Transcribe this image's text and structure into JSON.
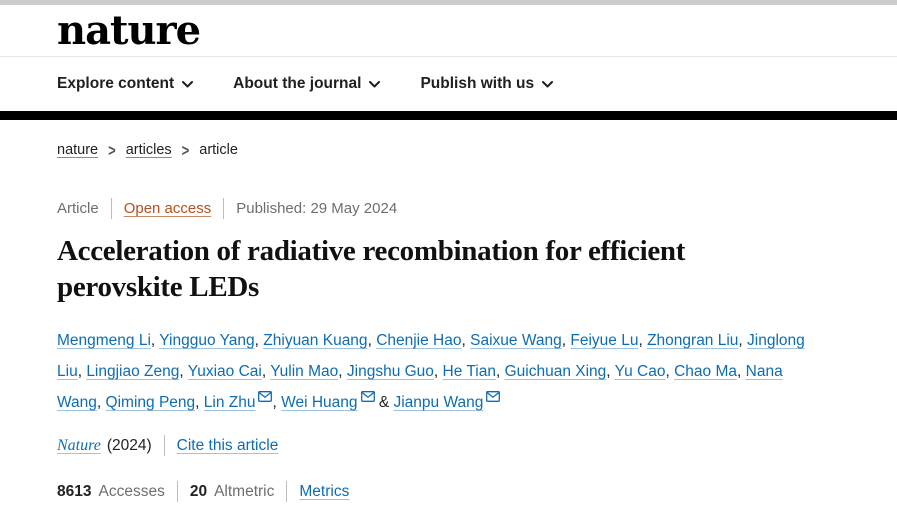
{
  "header": {
    "logo_text": "nature",
    "nav_items": [
      {
        "label": "Explore content"
      },
      {
        "label": "About the journal"
      },
      {
        "label": "Publish with us"
      }
    ]
  },
  "breadcrumb": {
    "separator": ">",
    "items": [
      {
        "label": "nature",
        "link": true
      },
      {
        "label": "articles",
        "link": true
      },
      {
        "label": "article",
        "link": false
      }
    ]
  },
  "meta": {
    "type_label": "Article",
    "access_label": "Open access",
    "published": "Published: 29 May 2024"
  },
  "title": "Acceleration of radiative recombination for efficient perovskite LEDs",
  "authors": {
    "final_separator": "&",
    "list": [
      {
        "name": "Mengmeng Li",
        "email": false
      },
      {
        "name": "Yingguo Yang",
        "email": false
      },
      {
        "name": "Zhiyuan Kuang",
        "email": false
      },
      {
        "name": "Chenjie Hao",
        "email": false
      },
      {
        "name": "Saixue Wang",
        "email": false
      },
      {
        "name": "Feiyue Lu",
        "email": false
      },
      {
        "name": "Zhongran Liu",
        "email": false
      },
      {
        "name": "Jinglong Liu",
        "email": false
      },
      {
        "name": "Lingjiao Zeng",
        "email": false
      },
      {
        "name": "Yuxiao Cai",
        "email": false
      },
      {
        "name": "Yulin Mao",
        "email": false
      },
      {
        "name": "Jingshu Guo",
        "email": false
      },
      {
        "name": "He Tian",
        "email": false
      },
      {
        "name": "Guichuan Xing",
        "email": false
      },
      {
        "name": "Yu Cao",
        "email": false
      },
      {
        "name": "Chao Ma",
        "email": false
      },
      {
        "name": "Nana Wang",
        "email": false
      },
      {
        "name": "Qiming Peng",
        "email": false
      },
      {
        "name": "Lin Zhu",
        "email": true
      },
      {
        "name": "Wei Huang",
        "email": true
      },
      {
        "name": "Jianpu Wang",
        "email": true
      }
    ]
  },
  "citation": {
    "journal": "Nature",
    "year": "(2024)",
    "cite_label": "Cite this article"
  },
  "metrics": {
    "accesses_value": "8613",
    "accesses_label": "Accesses",
    "altmetric_value": "20",
    "altmetric_label": "Altmetric",
    "metrics_label": "Metrics"
  },
  "colors": {
    "link_blue": "#0e6db2",
    "open_access_rust": "#b5501e",
    "text_dark": "#222222",
    "text_gray": "#6e6e6e",
    "topbar_gray": "#cccccc",
    "black_bar": "#000000"
  }
}
